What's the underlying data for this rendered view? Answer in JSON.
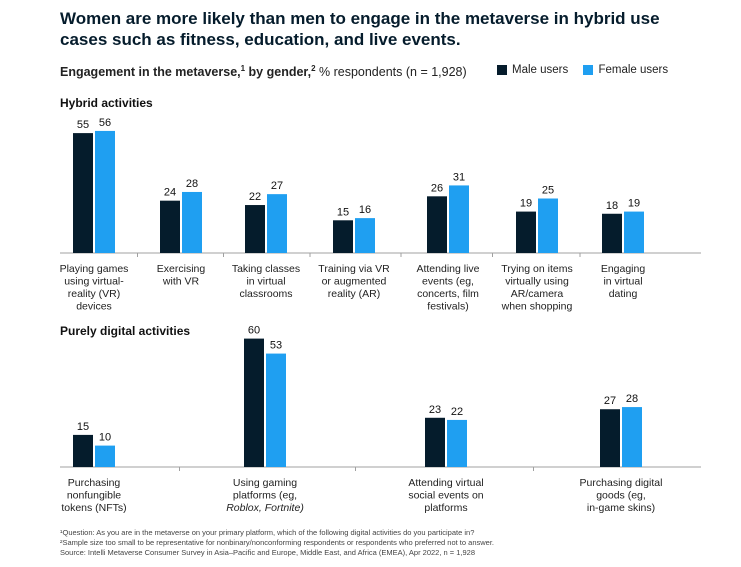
{
  "title": "Women are more likely than men to engage in the metaverse in hybrid use cases such as fitness, education, and live events.",
  "subtitle": {
    "main": "Engagement in the metaverse,",
    "sup1": "1",
    "by_gender": " by gender,",
    "sup2": "2",
    "rest": " % respondents (n = 1,928)"
  },
  "legend": {
    "male": "Male users",
    "female": "Female users"
  },
  "colors": {
    "male": "#051c2c",
    "female": "#1f9ff1",
    "axis": "#a0a0a0"
  },
  "chart_data": [
    {
      "type": "bar",
      "title": "Hybrid activities",
      "categories": [
        "Playing games using virtual-reality (VR) devices",
        "Exercising with VR",
        "Taking classes in virtual classrooms",
        "Training via VR or augmented reality (AR)",
        "Attending live events (eg, concerts, film festivals)",
        "Trying on items virtually using AR/camera when shopping",
        "Engaging in virtual dating"
      ],
      "category_lines": [
        [
          "Playing games",
          "using virtual-",
          "reality (VR)",
          "devices"
        ],
        [
          "Exercising",
          "with VR"
        ],
        [
          "Taking classes",
          "in virtual",
          "classrooms"
        ],
        [
          "Training via VR",
          "or augmented",
          "reality (AR)"
        ],
        [
          "Attending live",
          "events (eg,",
          "concerts, film",
          "festivals)"
        ],
        [
          "Trying on items",
          "virtually using",
          "AR/camera",
          "when shopping"
        ],
        [
          "Engaging",
          "in virtual",
          "dating"
        ]
      ],
      "series": [
        {
          "name": "Male users",
          "values": [
            55,
            24,
            22,
            15,
            26,
            19,
            18
          ]
        },
        {
          "name": "Female users",
          "values": [
            56,
            28,
            27,
            16,
            31,
            25,
            19
          ]
        }
      ]
    },
    {
      "type": "bar",
      "title": "Purely digital activities",
      "categories": [
        "Purchasing nonfungible tokens (NFTs)",
        "Using gaming platforms (eg, Roblox, Fortnite)",
        "Attending virtual social events on platforms",
        "Purchasing digital goods (eg, in-game skins)"
      ],
      "category_lines": [
        [
          "Purchasing",
          "nonfungible",
          "tokens (NFTs)"
        ],
        [
          "Using gaming",
          "platforms (eg,",
          "Roblox, Fortnite)"
        ],
        [
          "Attending virtual",
          "social events on",
          "platforms"
        ],
        [
          "Purchasing digital",
          "goods (eg,",
          "in-game skins)"
        ]
      ],
      "italic_words": [
        "Roblox,",
        "Fortnite)"
      ],
      "series": [
        {
          "name": "Male users",
          "values": [
            15,
            60,
            23,
            27
          ]
        },
        {
          "name": "Female users",
          "values": [
            10,
            53,
            22,
            28
          ]
        }
      ]
    }
  ],
  "footnotes": [
    "¹Question: As you are in the metaverse on your primary platform, which of the following digital activities do you participate in?",
    "²Sample size too small to be representative for nonbinary/nonconforming respondents or respondents who preferred not to answer.",
    "Source: Intelli Metaverse Consumer Survey in Asia–Pacific and Europe, Middle East, and Africa (EMEA), Apr 2022, n = 1,928"
  ]
}
